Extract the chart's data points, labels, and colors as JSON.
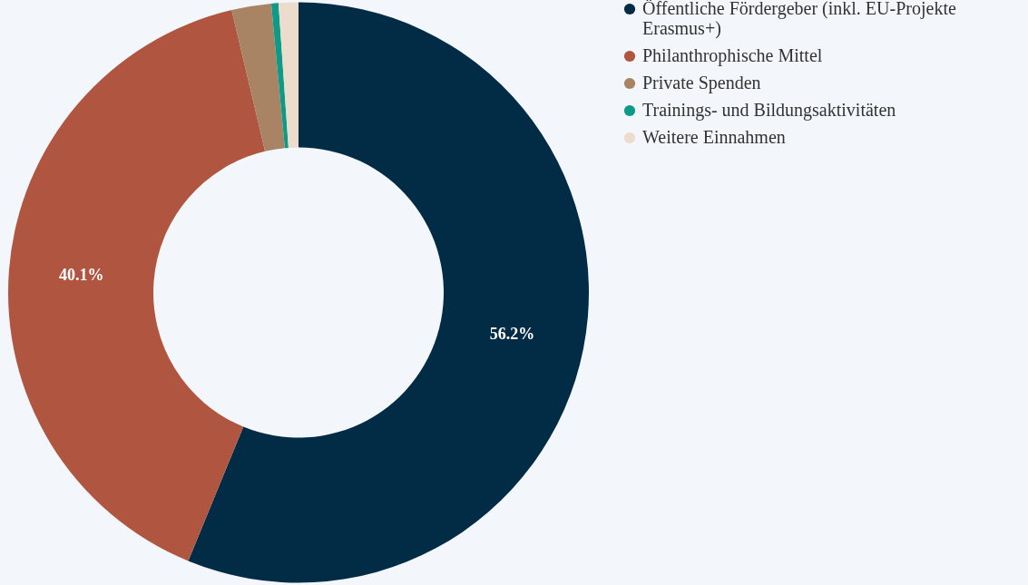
{
  "chart_data": {
    "type": "donut",
    "categories": [
      "Öffentliche Fördergeber (inkl. EU-Projekte Erasmus+)",
      "Philanthrophische Mittel",
      "Private Spenden",
      "Trainings- und Bildungsaktivitäten",
      "Weitere Einnahmen"
    ],
    "values": [
      56.2,
      40.1,
      2.2,
      0.4,
      1.1
    ],
    "colors": [
      "#022b45",
      "#b0553f",
      "#a88464",
      "#0f9a87",
      "#ecdccb"
    ],
    "value_labels": [
      "56.2%",
      "40.1%",
      null,
      null,
      null
    ],
    "legend": "top right"
  }
}
